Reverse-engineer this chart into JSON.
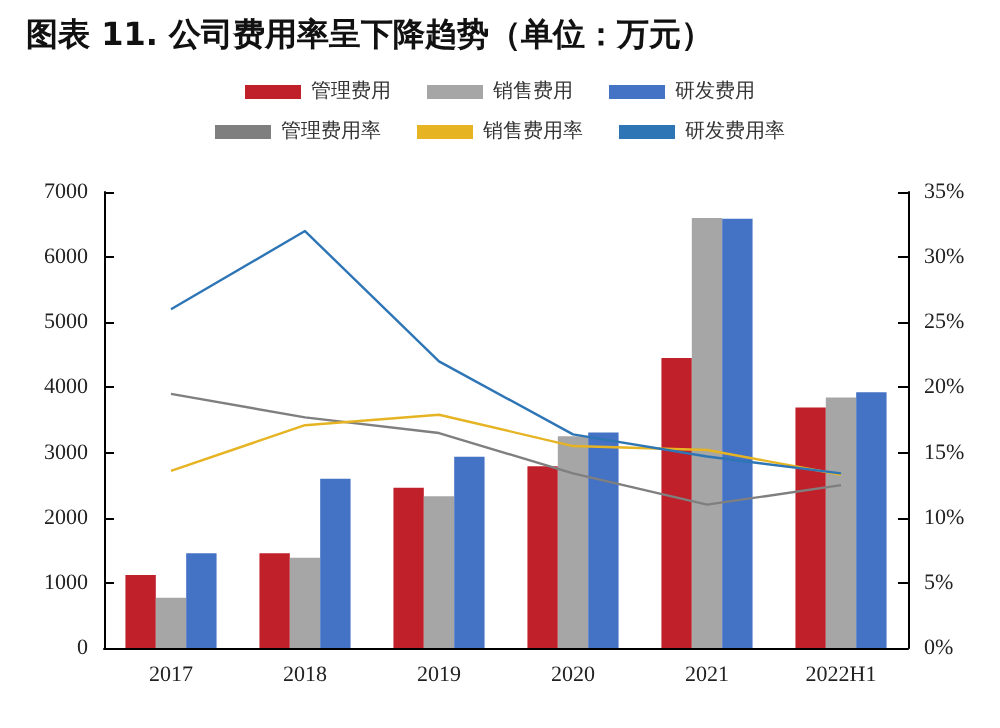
{
  "chart_data": {
    "type": "bar",
    "title": "图表 11. 公司费用率呈下降趋势（单位：万元）",
    "categories": [
      "2017",
      "2018",
      "2019",
      "2020",
      "2021",
      "2022H1"
    ],
    "series": [
      {
        "name": "管理费用",
        "color": "#c0202a",
        "values": [
          1120,
          1455,
          2460,
          2790,
          4450,
          3690
        ]
      },
      {
        "name": "销售费用",
        "color": "#a6a6a6",
        "values": [
          770,
          1385,
          2330,
          3250,
          6600,
          3845
        ]
      },
      {
        "name": "研发费用",
        "color": "#4472c4",
        "values": [
          1455,
          2600,
          2935,
          3310,
          6590,
          3925
        ]
      },
      {
        "name": "管理费用率",
        "type": "line",
        "axis": "y2",
        "color": "#7f7f7f",
        "values": [
          19.5,
          17.7,
          16.5,
          13.4,
          11.0,
          12.5
        ]
      },
      {
        "name": "销售费用率",
        "type": "line",
        "axis": "y2",
        "color": "#e6b422",
        "values": [
          13.6,
          17.1,
          17.9,
          15.5,
          15.2,
          13.3
        ]
      },
      {
        "name": "研发费用率",
        "type": "line",
        "axis": "y2",
        "color": "#2e75b6",
        "values": [
          26.0,
          32.0,
          22.0,
          16.4,
          14.7,
          13.4
        ]
      }
    ],
    "ylim": [
      0,
      7000
    ],
    "yticks": [
      0,
      1000,
      2000,
      3000,
      4000,
      5000,
      6000,
      7000
    ],
    "y2lim": [
      0,
      35
    ],
    "y2ticks": [
      {
        "value": 0,
        "label": "0%"
      },
      {
        "value": 5,
        "label": "5%"
      },
      {
        "value": 10,
        "label": "10%"
      },
      {
        "value": 15,
        "label": "15%"
      },
      {
        "value": 20,
        "label": "20%"
      },
      {
        "value": 25,
        "label": "25%"
      },
      {
        "value": 30,
        "label": "30%"
      },
      {
        "value": 35,
        "label": "35%"
      }
    ],
    "grid": false,
    "legend": "top",
    "marker": "none"
  }
}
